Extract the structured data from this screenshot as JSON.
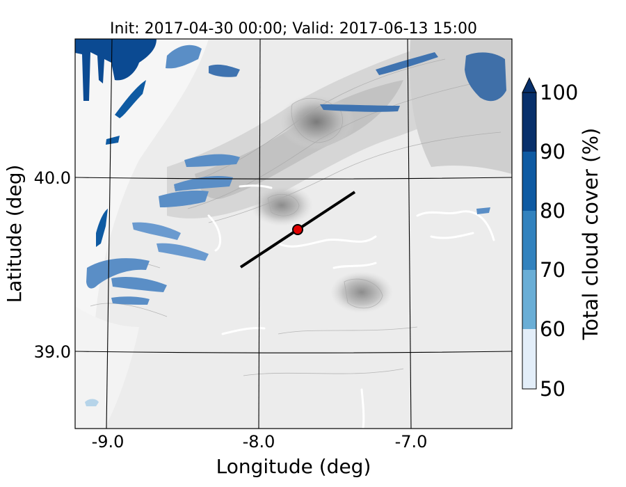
{
  "title": "Init: 2017-04-30 00:00; Valid: 2017-06-13 15:00",
  "xlabel": "Longitude (deg)",
  "ylabel": "Latitude (deg)",
  "colorbar": {
    "label": "Total cloud cover (%)",
    "ticks": [
      "50",
      "60",
      "70",
      "80",
      "90",
      "100"
    ],
    "colors": [
      "#e3eef9",
      "#b6d4e9",
      "#6aaed6",
      "#3282be",
      "#0e5aa2",
      "#08306b"
    ],
    "extend": "max"
  },
  "colors": {
    "terrain_base": "#efefef",
    "terrain_mid": "#d2d2d2",
    "terrain_high": "#8a8a8a",
    "cloud_light": "#8fb6db",
    "cloud_mid": "#5a8ec6",
    "cloud_dark": "#0b4a92",
    "section_line": "#000000",
    "point_marker": "#e00000"
  },
  "chart_data": {
    "type": "map",
    "title": "Init: 2017-04-30 00:00; Valid: 2017-06-13 15:00",
    "xlabel": "Longitude (deg)",
    "ylabel": "Latitude (deg)",
    "x_ticks": [
      "-9.0",
      "-8.0",
      "-7.0"
    ],
    "y_ticks": [
      "40.0",
      "39.0"
    ],
    "xlim": [
      -9.2,
      -6.35
    ],
    "ylim": [
      38.55,
      40.8
    ],
    "grid": true,
    "field": "Total cloud cover (%)",
    "levels": [
      50,
      60,
      70,
      80,
      90,
      100
    ],
    "cross_section": {
      "start": [
        -8.12,
        39.48
      ],
      "end": [
        -7.37,
        39.92
      ]
    },
    "point": [
      -7.75,
      39.7
    ]
  }
}
